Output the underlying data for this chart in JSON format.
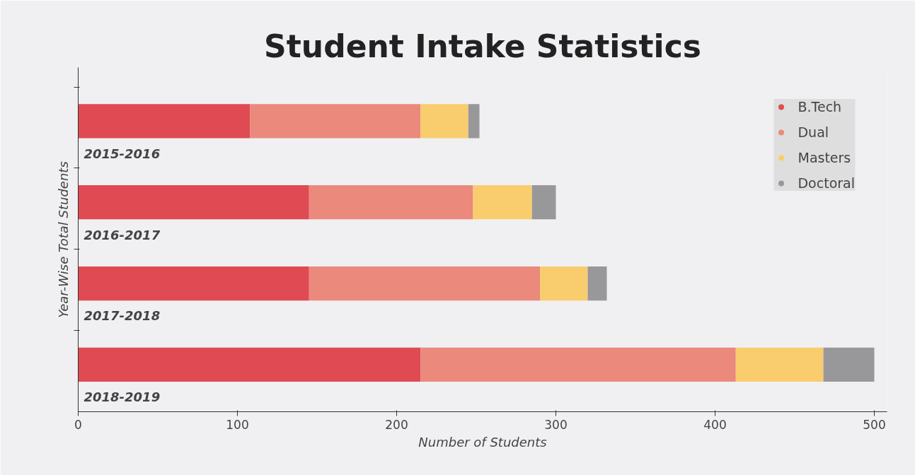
{
  "chart_data": {
    "type": "bar",
    "orientation": "horizontal",
    "stacked": true,
    "title": "Student Intake Statistics",
    "xlabel": "Number of Students",
    "ylabel": "Year-Wise Total Students",
    "categories": [
      "2015-2016",
      "2016-2017",
      "2017-2018",
      "2018-2019"
    ],
    "series": [
      {
        "name": "B.Tech",
        "color": "#e04a52",
        "values": [
          108,
          145,
          145,
          215
        ]
      },
      {
        "name": "Dual",
        "color": "#ea897c",
        "values": [
          107,
          103,
          145,
          198
        ]
      },
      {
        "name": "Masters",
        "color": "#f9cd6e",
        "values": [
          30,
          37,
          30,
          55
        ]
      },
      {
        "name": "Doctoral",
        "color": "#98989b",
        "values": [
          7,
          15,
          12,
          32
        ]
      }
    ],
    "xlim": [
      0,
      508
    ],
    "xticks": [
      0,
      100,
      200,
      300,
      400,
      500
    ],
    "grid": false,
    "legend": "top right",
    "tick_labels": "x"
  }
}
